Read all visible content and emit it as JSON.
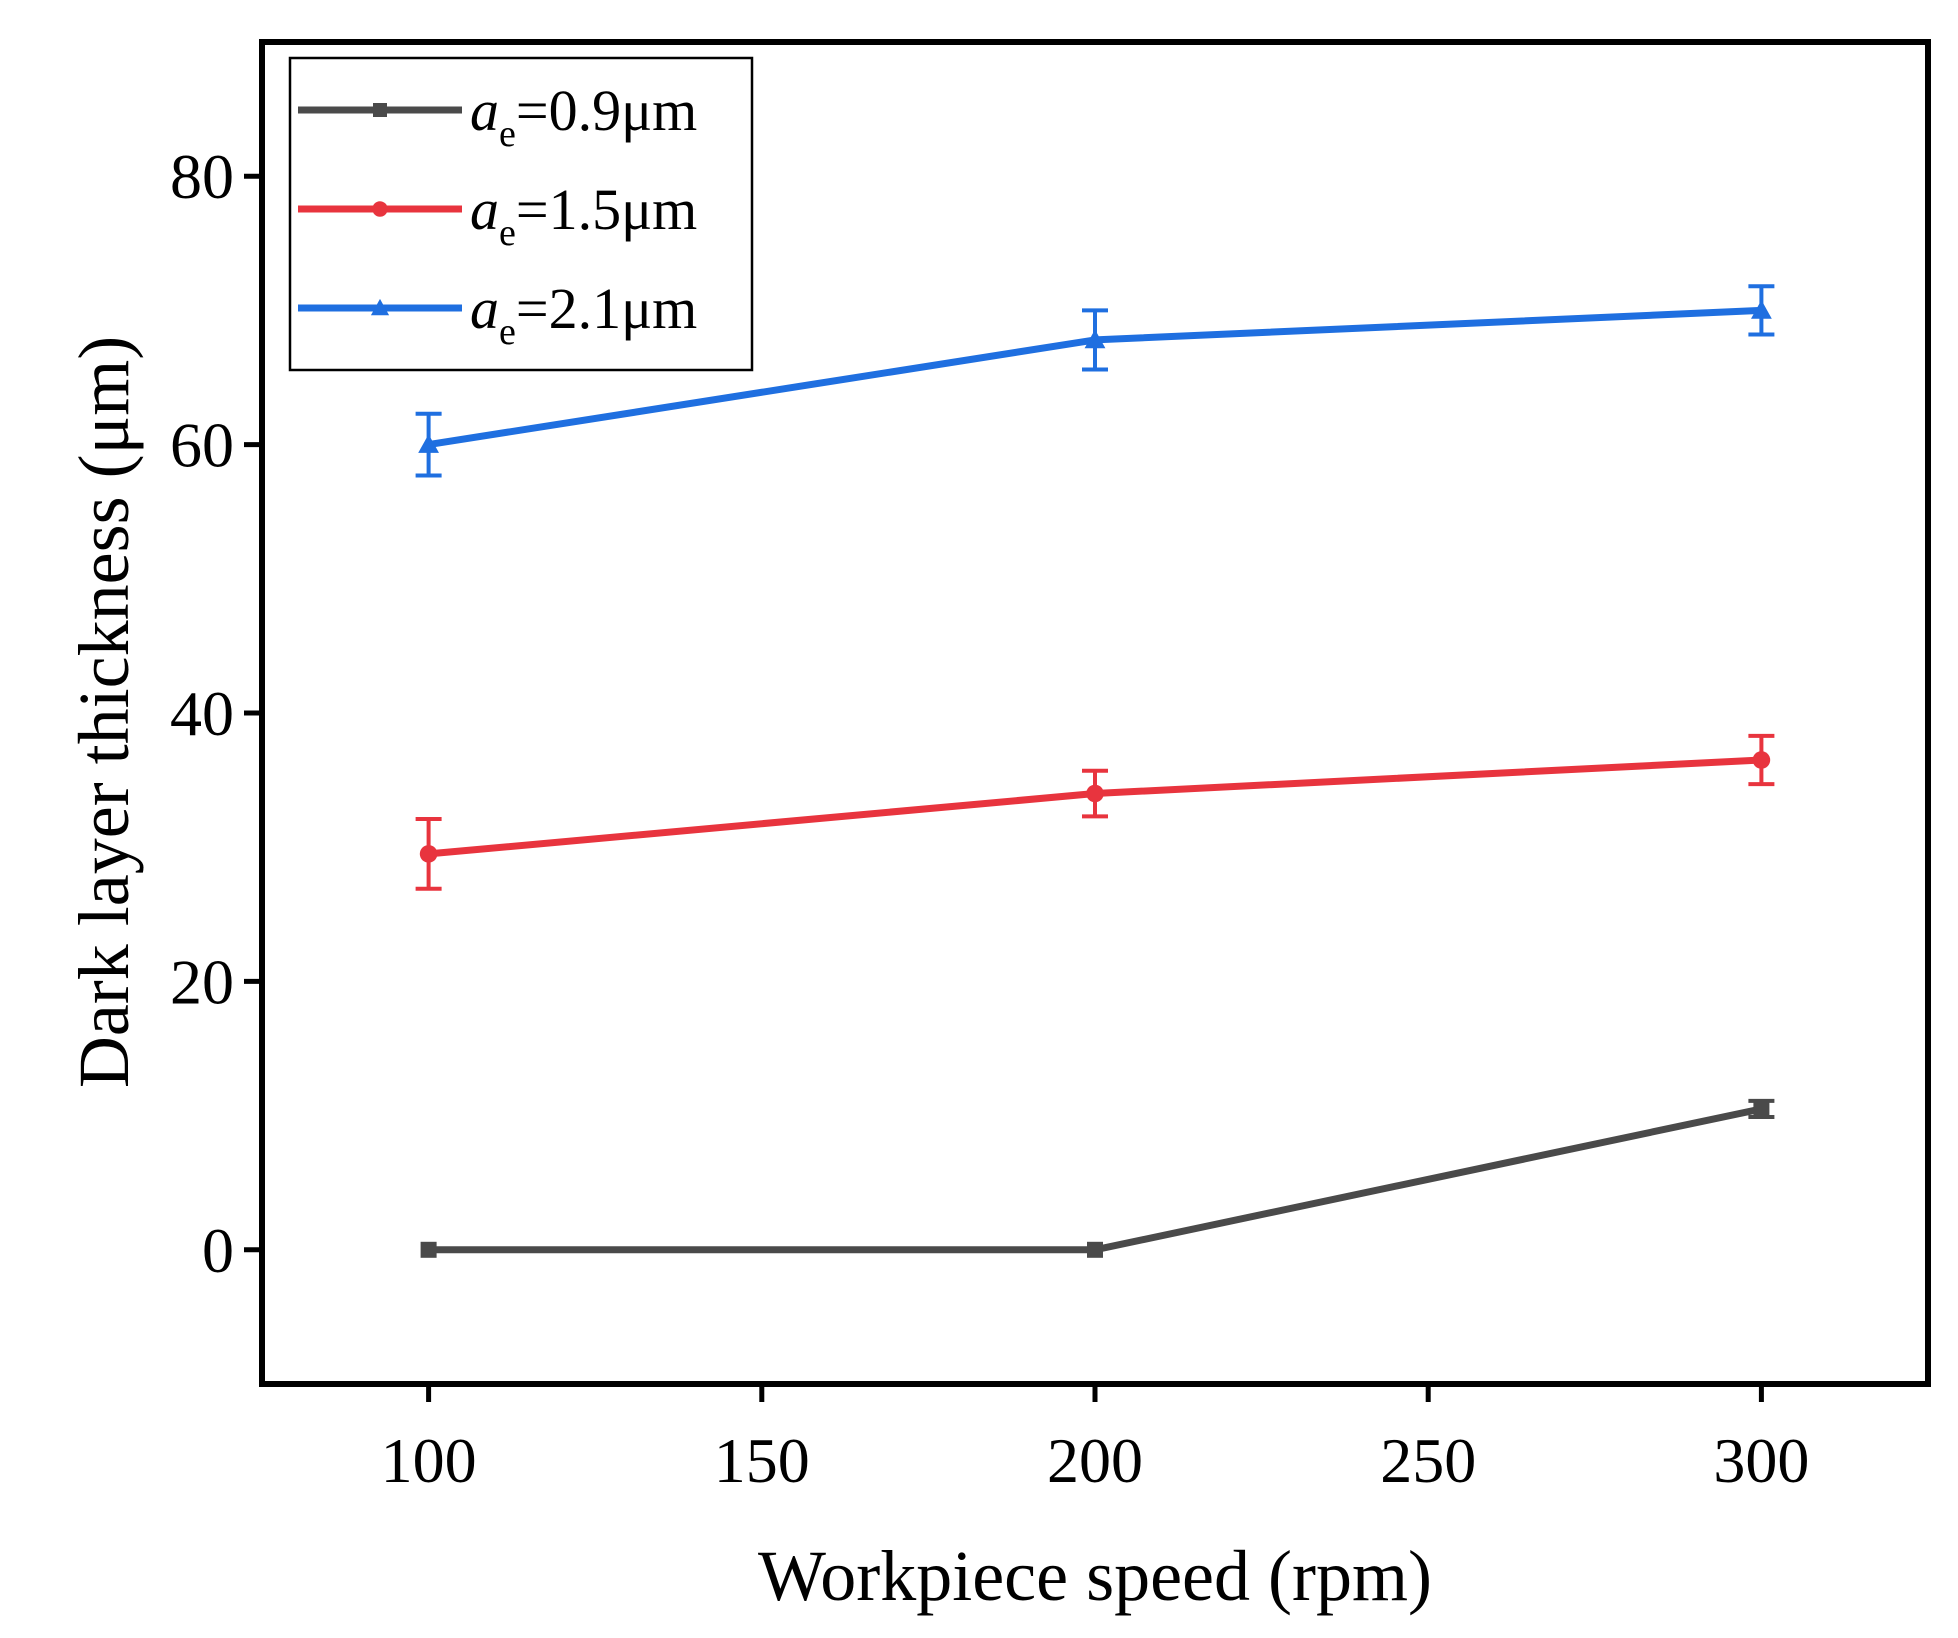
{
  "chart_data": {
    "type": "line",
    "title": "",
    "xlabel": "Workpiece speed (rpm)",
    "ylabel": "Dark layer thickness (μm)",
    "xlim": [
      75,
      325
    ],
    "ylim": [
      -10,
      90
    ],
    "xticks": [
      100,
      150,
      200,
      250,
      300
    ],
    "yticks": [
      0,
      20,
      40,
      60,
      80
    ],
    "x": [
      100,
      200,
      300
    ],
    "grid": false,
    "legend_position": "top-left",
    "series": [
      {
        "name": "a_e=0.9μm",
        "legend": {
          "var": "a",
          "sub": "e",
          "rest": "=0.9μm"
        },
        "color": "#4a4a4a",
        "marker": "square",
        "values": [
          0,
          0,
          10.5
        ],
        "errors": [
          0,
          0,
          0.6
        ]
      },
      {
        "name": "a_e=1.5μm",
        "legend": {
          "var": "a",
          "sub": "e",
          "rest": "=1.5μm"
        },
        "color": "#e8343e",
        "marker": "circle",
        "values": [
          29.5,
          34.0,
          36.5
        ],
        "errors": [
          2.6,
          1.7,
          1.8
        ]
      },
      {
        "name": "a_e=2.1μm",
        "legend": {
          "var": "a",
          "sub": "e",
          "rest": "=2.1μm"
        },
        "color": "#1f6fe0",
        "marker": "triangle",
        "values": [
          60.0,
          67.8,
          70.0
        ],
        "errors": [
          2.3,
          2.2,
          1.8
        ]
      }
    ]
  }
}
